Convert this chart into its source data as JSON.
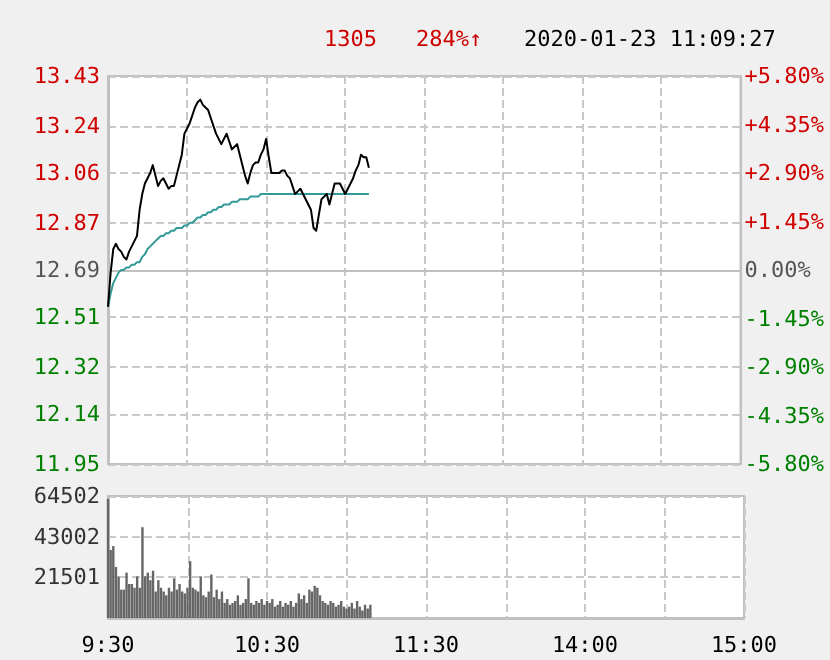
{
  "chart_data": [
    {
      "type": "line",
      "annotations": [
        "1305",
        "284%↑",
        "2020-01-23 11:09:27"
      ],
      "grid": true,
      "tick_labels": "y",
      "categories": [
        null,
        null,
        null,
        null,
        null,
        null,
        null,
        null,
        null,
        null,
        null,
        null,
        null,
        null,
        null,
        null,
        null,
        null,
        null,
        null,
        null,
        null,
        null,
        null,
        null,
        null,
        null,
        null,
        null,
        null,
        null,
        null,
        null,
        null,
        null,
        null,
        null,
        null,
        null,
        null,
        null,
        null,
        null,
        null,
        null,
        null,
        null,
        null,
        null,
        null,
        null,
        null,
        null,
        null,
        null,
        null,
        null,
        null,
        null,
        null,
        null,
        null,
        null,
        null,
        null,
        null,
        null,
        null,
        null,
        null,
        null,
        null,
        null,
        null,
        null,
        null,
        null,
        null,
        null,
        null,
        null,
        null,
        null,
        null,
        null,
        null,
        null,
        null,
        null,
        null,
        null,
        null,
        null,
        null,
        null,
        null,
        null,
        null,
        null,
        null,
        null,
        null,
        null,
        null,
        null,
        null,
        null,
        null,
        null,
        null,
        null,
        null,
        null,
        null,
        null,
        null,
        null,
        null,
        null,
        null,
        null,
        null,
        null,
        null,
        null,
        null,
        null,
        null,
        null,
        null,
        null,
        null,
        null,
        null,
        null,
        null,
        null,
        null,
        null,
        null,
        null,
        null,
        null,
        null,
        null,
        null,
        null,
        null,
        null,
        null,
        null,
        null,
        null,
        null,
        null,
        null,
        null,
        null,
        null,
        null,
        null,
        null,
        null,
        null,
        null,
        null,
        null,
        null,
        null,
        null,
        null,
        null,
        null,
        null,
        null,
        null,
        null,
        null,
        null,
        null,
        null,
        null,
        null,
        null,
        null,
        null,
        null,
        null,
        null,
        null,
        null,
        null,
        null,
        null,
        null,
        null,
        null,
        null,
        null,
        null,
        null,
        null,
        null,
        null,
        null,
        null,
        null,
        null,
        null,
        null,
        null,
        null,
        null,
        null,
        null,
        null,
        null,
        null,
        null,
        null,
        null,
        null,
        null,
        null,
        null,
        null,
        null,
        null,
        null,
        null,
        null,
        null,
        null,
        null,
        null,
        null,
        null,
        null,
        null,
        null,
        null
      ],
      "ylim": [
        11.95,
        13.43
      ],
      "yticks": [
        11.95,
        12.14,
        12.32,
        12.51,
        12.69,
        12.87,
        13.06,
        13.24,
        13.43
      ],
      "y2lim": [
        -5.8,
        5.8
      ],
      "y2ticks": [
        {
          "value": -5.8,
          "label": "-5.80%"
        },
        {
          "value": -4.35,
          "label": "-4.35%"
        },
        {
          "value": -2.9,
          "label": "-2.90%"
        },
        {
          "value": -1.45,
          "label": "-1.45%"
        },
        {
          "value": 0,
          "label": "0.00%"
        },
        {
          "value": 1.45,
          "label": "+1.45%"
        },
        {
          "value": 2.9,
          "label": "+2.90%"
        },
        {
          "value": 4.35,
          "label": "+4.35%"
        },
        {
          "value": 5.8,
          "label": "+5.80%"
        }
      ],
      "series": [
        {
          "color": "#339999",
          "values": [
            12.55,
            12.6,
            12.64,
            12.66,
            12.68,
            12.69,
            12.69,
            12.7,
            12.7,
            12.71,
            12.71,
            12.72,
            12.72,
            12.74,
            12.75,
            12.77,
            12.78,
            12.79,
            12.8,
            12.81,
            12.82,
            12.82,
            12.83,
            12.83,
            12.84,
            12.84,
            12.85,
            12.85,
            12.85,
            12.86,
            12.86,
            12.87,
            12.87,
            12.88,
            12.89,
            12.89,
            12.9,
            12.9,
            12.91,
            12.91,
            12.92,
            12.92,
            12.93,
            12.93,
            12.94,
            12.94,
            12.94,
            12.95,
            12.95,
            12.95,
            12.96,
            12.96,
            12.96,
            12.96,
            12.97,
            12.97,
            12.97,
            12.97,
            12.98,
            12.98,
            12.98,
            12.98,
            12.98,
            12.98,
            12.98,
            12.98,
            12.98,
            12.98,
            12.98,
            12.98,
            12.98,
            12.98,
            12.98,
            12.98,
            12.98,
            12.98,
            12.98,
            12.98,
            12.98,
            12.98,
            12.98,
            12.98,
            12.98,
            12.98,
            12.98,
            12.98,
            12.98,
            12.98,
            12.98,
            12.98,
            12.98,
            12.98,
            12.98,
            12.98,
            12.98,
            12.98,
            12.98,
            12.98,
            12.98,
            12.98,
            null,
            null,
            null,
            null,
            null,
            null,
            null,
            null,
            null,
            null,
            null,
            null,
            null,
            null,
            null,
            null,
            null,
            null,
            null,
            null,
            null,
            null,
            null,
            null,
            null,
            null,
            null,
            null,
            null,
            null,
            null,
            null,
            null,
            null,
            null,
            null,
            null,
            null,
            null,
            null,
            null,
            null,
            null,
            null,
            null,
            null,
            null,
            null,
            null,
            null,
            null,
            null,
            null,
            null,
            null,
            null,
            null,
            null,
            null,
            null,
            null,
            null,
            null,
            null,
            null,
            null,
            null,
            null,
            null,
            null,
            null,
            null,
            null,
            null,
            null,
            null,
            null,
            null,
            null,
            null,
            null,
            null,
            null,
            null,
            null,
            null,
            null,
            null,
            null,
            null,
            null,
            null,
            null,
            null,
            null,
            null,
            null,
            null,
            null,
            null,
            null,
            null,
            null,
            null,
            null,
            null,
            null,
            null,
            null,
            null,
            null,
            null,
            null,
            null,
            null,
            null,
            null,
            null,
            null,
            null,
            null,
            null,
            null,
            null,
            null,
            null,
            null,
            null,
            null,
            null,
            null,
            null,
            null,
            null,
            null,
            null,
            null,
            null,
            null,
            null,
            null
          ]
        },
        {
          "color": "#000000",
          "values": [
            12.55,
            12.68,
            12.77,
            12.79,
            12.77,
            12.76,
            12.74,
            12.73,
            12.76,
            12.78,
            12.8,
            12.82,
            12.92,
            12.98,
            13.02,
            13.04,
            13.06,
            13.09,
            13.05,
            13.01,
            13.03,
            13.04,
            13.02,
            13.0,
            13.01,
            13.01,
            13.05,
            13.09,
            13.13,
            13.21,
            13.23,
            13.25,
            13.28,
            13.31,
            13.33,
            13.34,
            13.32,
            13.31,
            13.3,
            13.27,
            13.24,
            13.21,
            13.19,
            13.17,
            13.19,
            13.21,
            13.18,
            13.15,
            13.16,
            13.17,
            13.13,
            13.09,
            13.05,
            13.02,
            13.06,
            13.09,
            13.1,
            13.1,
            13.13,
            13.15,
            13.19,
            13.12,
            13.06,
            13.06,
            13.06,
            13.06,
            13.07,
            13.07,
            13.05,
            13.04,
            13.01,
            12.98,
            12.99,
            13.0,
            12.98,
            12.96,
            12.94,
            12.92,
            12.85,
            12.84,
            12.9,
            12.96,
            12.97,
            12.98,
            12.94,
            12.98,
            13.02,
            13.02,
            13.02,
            13.0,
            12.98,
            13.0,
            13.02,
            13.04,
            13.07,
            13.09,
            13.13,
            13.12,
            13.12,
            13.08,
            null,
            null,
            null,
            null,
            null,
            null,
            null,
            null,
            null,
            null,
            null,
            null,
            null,
            null,
            null,
            null,
            null,
            null,
            null,
            null,
            null,
            null,
            null,
            null,
            null,
            null,
            null,
            null,
            null,
            null,
            null,
            null,
            null,
            null,
            null,
            null,
            null,
            null,
            null,
            null,
            null,
            null,
            null,
            null,
            null,
            null,
            null,
            null,
            null,
            null,
            null,
            null,
            null,
            null,
            null,
            null,
            null,
            null,
            null,
            null,
            null,
            null,
            null,
            null,
            null,
            null,
            null,
            null,
            null,
            null,
            null,
            null,
            null,
            null,
            null,
            null,
            null,
            null,
            null,
            null,
            null,
            null,
            null,
            null,
            null,
            null,
            null,
            null,
            null,
            null,
            null,
            null,
            null,
            null,
            null,
            null,
            null,
            null,
            null,
            null,
            null,
            null,
            null,
            null,
            null,
            null,
            null,
            null,
            null,
            null,
            null,
            null,
            null,
            null,
            null,
            null,
            null,
            null,
            null,
            null,
            null,
            null,
            null,
            null,
            null,
            null,
            null,
            null,
            null,
            null,
            null,
            null,
            null,
            null,
            null,
            null,
            null,
            null,
            null,
            null,
            null
          ]
        }
      ]
    },
    {
      "type": "bar",
      "grid": true,
      "categories": [
        "9:30",
        null,
        null,
        null,
        null,
        null,
        null,
        null,
        null,
        null,
        null,
        null,
        null,
        null,
        null,
        null,
        null,
        null,
        null,
        null,
        null,
        null,
        null,
        null,
        null,
        null,
        null,
        null,
        null,
        null,
        null,
        null,
        null,
        null,
        null,
        null,
        null,
        null,
        null,
        null,
        null,
        null,
        null,
        null,
        null,
        null,
        null,
        null,
        null,
        null,
        null,
        null,
        null,
        null,
        null,
        null,
        null,
        null,
        null,
        null,
        "10:30",
        null,
        null,
        null,
        null,
        null,
        null,
        null,
        null,
        null,
        null,
        null,
        null,
        null,
        null,
        null,
        null,
        null,
        null,
        null,
        null,
        null,
        null,
        null,
        null,
        null,
        null,
        null,
        null,
        null,
        null,
        null,
        null,
        null,
        null,
        null,
        null,
        null,
        null,
        null,
        null,
        null,
        null,
        null,
        null,
        null,
        null,
        null,
        null,
        null,
        null,
        null,
        null,
        null,
        null,
        null,
        null,
        null,
        null,
        null,
        "11:30",
        null,
        null,
        null,
        null,
        null,
        null,
        null,
        null,
        null,
        null,
        null,
        null,
        null,
        null,
        null,
        null,
        null,
        null,
        null,
        null,
        null,
        null,
        null,
        null,
        null,
        null,
        null,
        null,
        null,
        null,
        null,
        null,
        null,
        null,
        null,
        null,
        null,
        null,
        null,
        null,
        null,
        null,
        null,
        null,
        null,
        null,
        null,
        null,
        null,
        null,
        null,
        null,
        null,
        null,
        null,
        null,
        null,
        null,
        null,
        "14:00",
        null,
        null,
        null,
        null,
        null,
        null,
        null,
        null,
        null,
        null,
        null,
        null,
        null,
        null,
        null,
        null,
        null,
        null,
        null,
        null,
        null,
        null,
        null,
        null,
        null,
        null,
        null,
        null,
        null,
        null,
        null,
        null,
        null,
        null,
        null,
        null,
        null,
        null,
        null,
        null,
        null,
        null,
        null,
        null,
        null,
        null,
        null,
        null,
        null,
        null,
        null,
        null,
        null,
        null,
        null,
        null,
        null,
        null,
        null,
        "15:00"
      ],
      "ylim": [
        0,
        64502
      ],
      "yticks": [
        {
          "value": 0,
          "label": null
        },
        21501,
        43002,
        64502
      ],
      "series": [
        {
          "color": "#666666",
          "values": [
            63000,
            36000,
            38000,
            27000,
            22000,
            15000,
            15000,
            24000,
            18000,
            18000,
            16000,
            22000,
            16000,
            48000,
            22000,
            24000,
            20000,
            25000,
            14000,
            20000,
            16000,
            14000,
            12000,
            16000,
            14000,
            21000,
            15000,
            18000,
            14000,
            13000,
            16000,
            30000,
            16000,
            15000,
            14000,
            22000,
            12000,
            11000,
            14000,
            23000,
            11000,
            15000,
            10000,
            14000,
            8000,
            10000,
            7000,
            8000,
            9000,
            12000,
            7000,
            8000,
            10000,
            21000,
            8000,
            7000,
            9000,
            8000,
            10000,
            7000,
            9000,
            8000,
            10000,
            6000,
            7000,
            9000,
            6000,
            8000,
            7000,
            9000,
            6000,
            8000,
            13000,
            10000,
            12000,
            8000,
            15000,
            14000,
            17000,
            16000,
            12000,
            9000,
            8000,
            7000,
            9000,
            8000,
            6000,
            7000,
            9000,
            6000,
            5000,
            6000,
            8000,
            5000,
            9000,
            6000,
            4000,
            7000,
            5000,
            7000,
            null,
            null,
            null,
            null,
            null,
            null,
            null,
            null,
            null,
            null,
            null,
            null,
            null,
            null,
            null,
            null,
            null,
            null,
            null,
            null,
            null,
            null,
            null,
            null,
            null,
            null,
            null,
            null,
            null,
            null,
            null,
            null,
            null,
            null,
            null,
            null,
            null,
            null,
            null,
            null,
            null,
            null,
            null,
            null,
            null,
            null,
            null,
            null,
            null,
            null,
            null,
            null,
            null,
            null,
            null,
            null,
            null,
            null,
            null,
            null,
            null,
            null,
            null,
            null,
            null,
            null,
            null,
            null,
            null,
            null,
            null,
            null,
            null,
            null,
            null,
            null,
            null,
            null,
            null,
            null,
            null,
            null,
            null,
            null,
            null,
            null,
            null,
            null,
            null,
            null,
            null,
            null,
            null,
            null,
            null,
            null,
            null,
            null,
            null,
            null,
            null,
            null,
            null,
            null,
            null,
            null,
            null,
            null,
            null,
            null,
            null,
            null,
            null,
            null,
            null,
            null,
            null,
            null,
            null,
            null,
            null,
            null,
            null,
            null,
            null,
            null,
            null,
            null,
            null,
            null,
            null,
            null,
            null,
            null,
            null,
            null,
            null,
            null,
            null,
            null,
            null
          ]
        }
      ]
    }
  ]
}
